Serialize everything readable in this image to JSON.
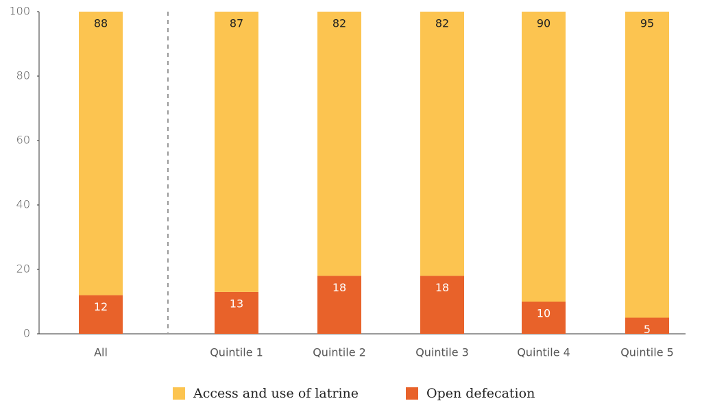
{
  "chart_data": {
    "type": "stacked_bar",
    "categories": [
      "All",
      "Quintile 1",
      "Quintile 2",
      "Quintile 3",
      "Quintile 4",
      "Quintile 5"
    ],
    "series": [
      {
        "name": "Access and use of latrine",
        "color": "#fcc450",
        "values": [
          88,
          87,
          82,
          82,
          90,
          95
        ]
      },
      {
        "name": "Open defecation",
        "color": "#e8622a",
        "values": [
          12,
          13,
          18,
          18,
          10,
          5
        ]
      }
    ],
    "ylim": [
      0,
      100
    ],
    "yticks": [
      0,
      20,
      40,
      60,
      80,
      100
    ],
    "legend": "bottom"
  }
}
